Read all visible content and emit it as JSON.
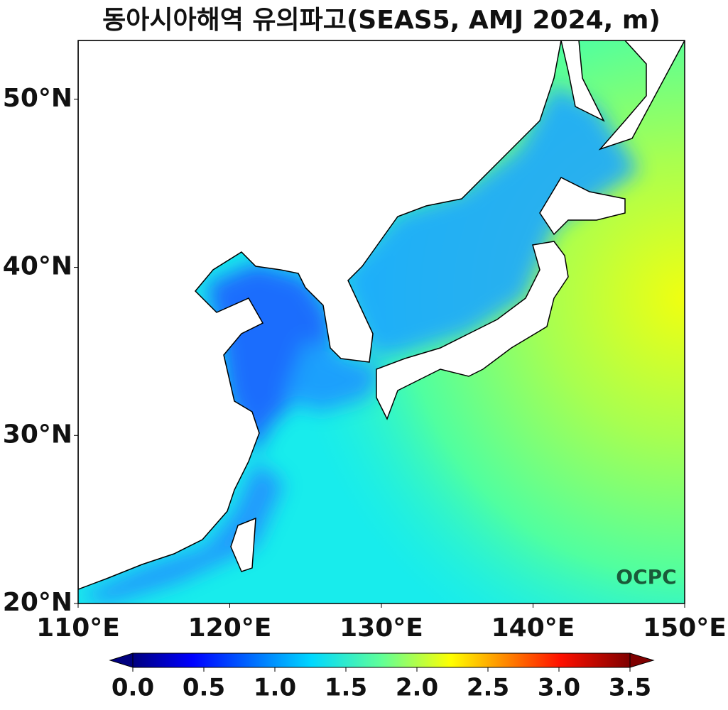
{
  "title": "동아시아해역 유의파고(SEAS5, AMJ 2024, m)",
  "map": {
    "xlim": [
      110,
      150
    ],
    "ylim": [
      20,
      53.5
    ],
    "xticks": [
      {
        "value": 110,
        "label": "110°E"
      },
      {
        "value": 120,
        "label": "120°E"
      },
      {
        "value": 130,
        "label": "130°E"
      },
      {
        "value": 140,
        "label": "140°E"
      },
      {
        "value": 150,
        "label": "150°E"
      }
    ],
    "yticks": [
      {
        "value": 20,
        "label": "20°N"
      },
      {
        "value": 30,
        "label": "30°N"
      },
      {
        "value": 40,
        "label": "40°N"
      },
      {
        "value": 50,
        "label": "50°N"
      }
    ]
  },
  "colorbar": {
    "range": [
      0,
      3.5
    ],
    "ticks": [
      {
        "value": 0,
        "label": "0.0"
      },
      {
        "value": 0.5,
        "label": "0.5"
      },
      {
        "value": 1,
        "label": "1.0"
      },
      {
        "value": 1.5,
        "label": "1.5"
      },
      {
        "value": 2,
        "label": "2.0"
      },
      {
        "value": 2.5,
        "label": "2.5"
      },
      {
        "value": 3,
        "label": "3.0"
      },
      {
        "value": 3.5,
        "label": "3.5"
      }
    ]
  },
  "logo": "OCPC"
}
